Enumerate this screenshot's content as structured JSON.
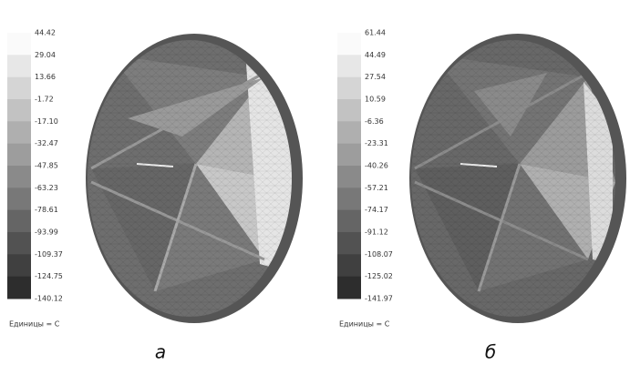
{
  "panels": [
    {
      "colorbar_labels": [
        "44.42",
        "29.04",
        "13.66",
        "-1.72",
        "-17.10",
        "-32.47",
        "-47.85",
        "-63.23",
        "-78.61",
        "-93.99",
        "-109.37",
        "-124.75",
        "-140.12"
      ],
      "units": "Единицы = C",
      "caption": "а"
    },
    {
      "colorbar_labels": [
        "61.44",
        "44.49",
        "27.54",
        "10.59",
        "-6.36",
        "-23.31",
        "-40.26",
        "-57.21",
        "-74.17",
        "-91.12",
        "-108.07",
        "-125.02",
        "-141.97"
      ],
      "units": "Единицы = C",
      "caption": "б"
    }
  ]
}
